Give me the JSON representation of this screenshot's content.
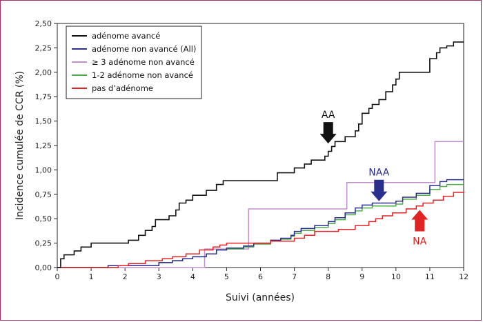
{
  "chart_data": {
    "type": "line",
    "xlabel": "Suivi (années)",
    "ylabel": "Incidence cumulée de CCR (%)",
    "xlim": [
      0,
      12
    ],
    "ylim": [
      0,
      2.5
    ],
    "x_ticks": [
      "0",
      "1",
      "2",
      "3",
      "4",
      "5",
      "6",
      "7",
      "8",
      "9",
      "10",
      "11",
      "12"
    ],
    "y_ticks": [
      "0,00",
      "0,25",
      "0,50",
      "0,75",
      "1,00",
      "1,25",
      "1,50",
      "1,75",
      "2,00",
      "2,25",
      "2,50"
    ],
    "grid": false,
    "legend_position": "top-left",
    "series": [
      {
        "name": "adénome avancé",
        "color": "#111111",
        "points": [
          [
            0,
            0
          ],
          [
            0.1,
            0.09
          ],
          [
            0.2,
            0.13
          ],
          [
            0.5,
            0.17
          ],
          [
            0.7,
            0.21
          ],
          [
            1.0,
            0.25
          ],
          [
            2.0,
            0.25
          ],
          [
            2.1,
            0.28
          ],
          [
            2.4,
            0.33
          ],
          [
            2.6,
            0.38
          ],
          [
            2.8,
            0.42
          ],
          [
            2.9,
            0.49
          ],
          [
            3.3,
            0.53
          ],
          [
            3.5,
            0.59
          ],
          [
            3.6,
            0.66
          ],
          [
            3.8,
            0.69
          ],
          [
            4.0,
            0.74
          ],
          [
            4.4,
            0.79
          ],
          [
            4.7,
            0.85
          ],
          [
            4.9,
            0.89
          ],
          [
            5.0,
            0.89
          ],
          [
            6.4,
            0.89
          ],
          [
            6.5,
            0.97
          ],
          [
            7.0,
            1.02
          ],
          [
            7.3,
            1.06
          ],
          [
            7.5,
            1.1
          ],
          [
            7.9,
            1.14
          ],
          [
            8.0,
            1.19
          ],
          [
            8.1,
            1.24
          ],
          [
            8.2,
            1.29
          ],
          [
            8.5,
            1.34
          ],
          [
            8.8,
            1.4
          ],
          [
            8.9,
            1.47
          ],
          [
            9.0,
            1.58
          ],
          [
            9.2,
            1.63
          ],
          [
            9.3,
            1.67
          ],
          [
            9.5,
            1.72
          ],
          [
            9.7,
            1.8
          ],
          [
            9.9,
            1.87
          ],
          [
            10.0,
            1.93
          ],
          [
            10.1,
            2.0
          ],
          [
            10.8,
            2.0
          ],
          [
            11.0,
            2.14
          ],
          [
            11.2,
            2.2
          ],
          [
            11.3,
            2.25
          ],
          [
            11.5,
            2.27
          ],
          [
            11.7,
            2.31
          ],
          [
            12.0,
            2.31
          ]
        ]
      },
      {
        "name": "adénome non avancé (All)",
        "color": "#2a2e8c",
        "points": [
          [
            0,
            0
          ],
          [
            1.3,
            0
          ],
          [
            1.5,
            0.02
          ],
          [
            2.8,
            0.02
          ],
          [
            3.0,
            0.05
          ],
          [
            3.4,
            0.07
          ],
          [
            3.7,
            0.09
          ],
          [
            4.0,
            0.11
          ],
          [
            4.4,
            0.14
          ],
          [
            4.7,
            0.18
          ],
          [
            5.0,
            0.2
          ],
          [
            5.5,
            0.22
          ],
          [
            5.8,
            0.25
          ],
          [
            6.3,
            0.28
          ],
          [
            6.6,
            0.3
          ],
          [
            6.9,
            0.33
          ],
          [
            7.0,
            0.37
          ],
          [
            7.2,
            0.4
          ],
          [
            7.6,
            0.43
          ],
          [
            8.0,
            0.47
          ],
          [
            8.2,
            0.51
          ],
          [
            8.5,
            0.56
          ],
          [
            8.8,
            0.61
          ],
          [
            9.0,
            0.64
          ],
          [
            9.3,
            0.66
          ],
          [
            10.0,
            0.68
          ],
          [
            10.2,
            0.72
          ],
          [
            10.6,
            0.76
          ],
          [
            11.0,
            0.84
          ],
          [
            11.3,
            0.88
          ],
          [
            11.5,
            0.9
          ],
          [
            12.0,
            0.9
          ]
        ]
      },
      {
        "name": "≥ 3 adénome non avancé",
        "color": "#c28fce",
        "points": [
          [
            0,
            0
          ],
          [
            4.3,
            0
          ],
          [
            4.35,
            0.19
          ],
          [
            5.6,
            0.19
          ],
          [
            5.65,
            0.6
          ],
          [
            8.5,
            0.6
          ],
          [
            8.55,
            0.87
          ],
          [
            11.1,
            0.87
          ],
          [
            11.15,
            1.29
          ],
          [
            12.0,
            1.29
          ]
        ]
      },
      {
        "name": "1-2 adénome non avancé",
        "color": "#4fae4a",
        "points": [
          [
            0,
            0
          ],
          [
            1.3,
            0
          ],
          [
            1.5,
            0.02
          ],
          [
            2.8,
            0.02
          ],
          [
            3.0,
            0.05
          ],
          [
            3.4,
            0.07
          ],
          [
            3.7,
            0.09
          ],
          [
            4.0,
            0.11
          ],
          [
            4.4,
            0.14
          ],
          [
            4.7,
            0.18
          ],
          [
            5.0,
            0.19
          ],
          [
            5.5,
            0.21
          ],
          [
            5.8,
            0.24
          ],
          [
            6.3,
            0.27
          ],
          [
            6.6,
            0.29
          ],
          [
            6.9,
            0.32
          ],
          [
            7.0,
            0.35
          ],
          [
            7.2,
            0.38
          ],
          [
            7.6,
            0.41
          ],
          [
            8.0,
            0.45
          ],
          [
            8.2,
            0.49
          ],
          [
            8.5,
            0.54
          ],
          [
            8.8,
            0.58
          ],
          [
            9.0,
            0.61
          ],
          [
            9.3,
            0.63
          ],
          [
            10.0,
            0.65
          ],
          [
            10.2,
            0.7
          ],
          [
            10.6,
            0.74
          ],
          [
            11.0,
            0.8
          ],
          [
            11.3,
            0.83
          ],
          [
            11.5,
            0.85
          ],
          [
            12.0,
            0.85
          ]
        ]
      },
      {
        "name": "pas d’adénome",
        "color": "#e02323",
        "points": [
          [
            0,
            0
          ],
          [
            1.5,
            0
          ],
          [
            1.8,
            0.02
          ],
          [
            2.1,
            0.04
          ],
          [
            2.6,
            0.07
          ],
          [
            3.1,
            0.09
          ],
          [
            3.4,
            0.11
          ],
          [
            3.8,
            0.14
          ],
          [
            4.2,
            0.18
          ],
          [
            4.6,
            0.21
          ],
          [
            4.8,
            0.23
          ],
          [
            5.0,
            0.25
          ],
          [
            5.8,
            0.25
          ],
          [
            6.3,
            0.27
          ],
          [
            7.0,
            0.3
          ],
          [
            7.3,
            0.33
          ],
          [
            7.6,
            0.37
          ],
          [
            8.3,
            0.39
          ],
          [
            8.8,
            0.43
          ],
          [
            9.2,
            0.47
          ],
          [
            9.4,
            0.5
          ],
          [
            9.6,
            0.53
          ],
          [
            9.9,
            0.56
          ],
          [
            10.3,
            0.6
          ],
          [
            10.6,
            0.63
          ],
          [
            10.8,
            0.66
          ],
          [
            11.1,
            0.69
          ],
          [
            11.4,
            0.73
          ],
          [
            11.7,
            0.77
          ],
          [
            12.0,
            0.78
          ]
        ]
      }
    ],
    "annotations": [
      {
        "text": "AA",
        "color": "#111111",
        "arrow": "down",
        "x": 8.0,
        "y": 1.27
      },
      {
        "text": "NAA",
        "color": "#2a2e8c",
        "arrow": "down",
        "x": 9.5,
        "y": 0.68
      },
      {
        "text": "NA",
        "color": "#e02323",
        "arrow": "up",
        "x": 10.7,
        "y": 0.59
      }
    ]
  }
}
